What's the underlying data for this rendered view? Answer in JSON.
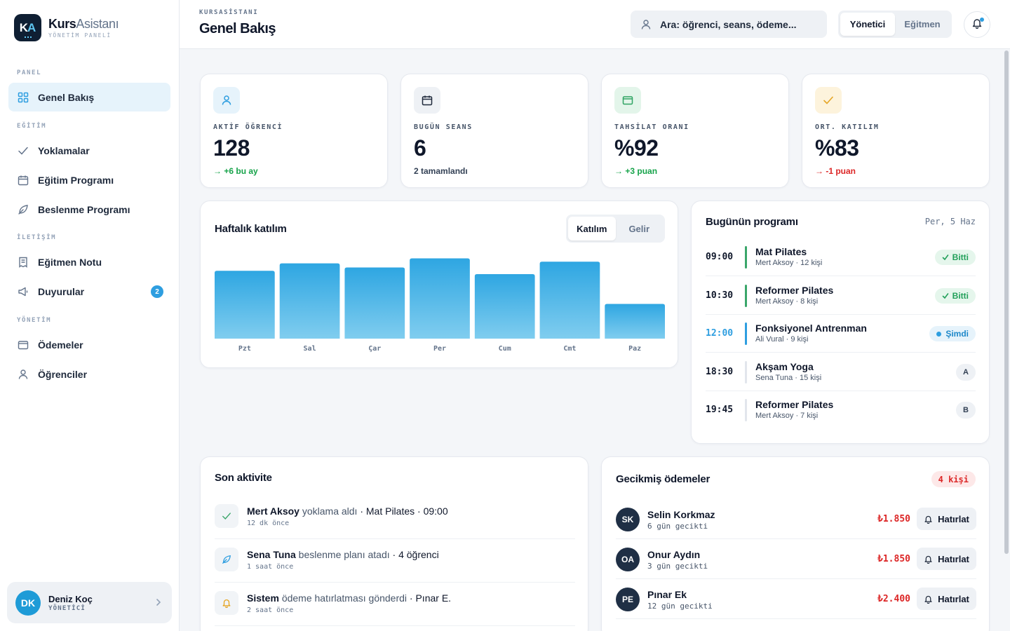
{
  "brand": {
    "name_bold": "Kurs",
    "name_light": "Asistanı",
    "subtitle": "YÖNETİM PANELİ",
    "logo_k": "K",
    "logo_a": "A"
  },
  "sidebar": {
    "sections": [
      {
        "label": "PANEL"
      },
      {
        "label": "EĞİTİM"
      },
      {
        "label": "İLETİŞİM"
      },
      {
        "label": "YÖNETİM"
      }
    ],
    "items": [
      {
        "label": "Genel Bakış",
        "icon": "grid-icon",
        "active": true
      },
      {
        "label": "Yoklamalar",
        "icon": "check-icon"
      },
      {
        "label": "Eğitim Programı",
        "icon": "calendar-icon"
      },
      {
        "label": "Beslenme Programı",
        "icon": "leaf-icon"
      },
      {
        "label": "Eğitmen Notu",
        "icon": "note-icon"
      },
      {
        "label": "Duyurular",
        "icon": "megaphone-icon",
        "badge": "2"
      },
      {
        "label": "Ödemeler",
        "icon": "wallet-icon"
      },
      {
        "label": "Öğrenciler",
        "icon": "user-icon"
      }
    ],
    "user": {
      "initials": "DK",
      "name": "Deniz Koç",
      "role": "YÖNETİCİ"
    }
  },
  "header": {
    "crumb": "KURSASİSTANI",
    "title": "Genel Bakış",
    "search_placeholder": "Ara: öğrenci, seans, ödeme...",
    "roles": [
      "Yönetici",
      "Eğitmen"
    ],
    "active_role": "Yönetici"
  },
  "stats": [
    {
      "label": "AKTİF ÖĞRENCİ",
      "value": "128",
      "delta": "+6 bu ay",
      "trend": "up",
      "icon": "user-icon",
      "icon_bg": "#e6f3fb",
      "icon_color": "#2e9ee0"
    },
    {
      "label": "BUGÜN SEANS",
      "value": "6",
      "delta": "2 tamamlandı",
      "trend": "neutral",
      "icon": "calendar-icon",
      "icon_bg": "#eef1f5",
      "icon_color": "#1e293b"
    },
    {
      "label": "TAHSİLAT ORANI",
      "value": "%92",
      "delta": "+3 puan",
      "trend": "up",
      "icon": "wallet-icon",
      "icon_bg": "#e3f5ea",
      "icon_color": "#2fa463"
    },
    {
      "label": "ORT. KATILIM",
      "value": "%83",
      "delta": "-1 puan",
      "trend": "down",
      "icon": "check-icon",
      "icon_bg": "#fdf3dc",
      "icon_color": "#e5a524"
    }
  ],
  "weekly": {
    "title": "Haftalık katılım",
    "toggle": [
      "Katılım",
      "Gelir"
    ],
    "active_toggle": "Katılım"
  },
  "chart_data": {
    "type": "bar",
    "categories": [
      "Pzt",
      "Sal",
      "Çar",
      "Per",
      "Cum",
      "Cmt",
      "Paz"
    ],
    "values": [
      82,
      91,
      86,
      97,
      78,
      93,
      42
    ],
    "ylim": [
      0,
      100
    ],
    "grid": false,
    "legend": "none"
  },
  "schedule": {
    "title": "Bugünün programı",
    "date": "Per, 5 Haz",
    "rows": [
      {
        "time": "09:00",
        "name": "Mat Pilates",
        "meta": "Mert Aksoy · 12 kişi",
        "status": "done",
        "status_label": "Bitti"
      },
      {
        "time": "10:30",
        "name": "Reformer Pilates",
        "meta": "Mert Aksoy · 8 kişi",
        "status": "done",
        "status_label": "Bitti"
      },
      {
        "time": "12:00",
        "name": "Fonksiyonel Antrenman",
        "meta": "Ali Vural · 9 kişi",
        "status": "now",
        "status_label": "Şimdi"
      },
      {
        "time": "18:30",
        "name": "Akşam Yoga",
        "meta": "Sena Tuna · 15 kişi",
        "status": "letter",
        "status_label": "A"
      },
      {
        "time": "19:45",
        "name": "Reformer Pilates",
        "meta": "Mert Aksoy · 7 kişi",
        "status": "letter",
        "status_label": "B"
      }
    ]
  },
  "activity": {
    "title": "Son aktivite",
    "rows": [
      {
        "actor": "Mert Aksoy",
        "verb": "yoklama aldı",
        "detail": "· Mat Pilates · 09:00",
        "time": "12 dk önce",
        "icon": "check-icon",
        "icon_color": "#3aa66a"
      },
      {
        "actor": "Sena Tuna",
        "verb": "beslenme planı atadı",
        "detail": "· 4 öğrenci",
        "time": "1 saat önce",
        "icon": "leaf-icon",
        "icon_color": "#2e9ee0"
      },
      {
        "actor": "Sistem",
        "verb": "ödeme hatırlatması gönderdi",
        "detail": "· Pınar E.",
        "time": "2 saat önce",
        "icon": "bell-icon",
        "icon_color": "#e5a524"
      }
    ]
  },
  "payments": {
    "title": "Gecikmiş ödemeler",
    "badge": "4 kişi",
    "remind_label": "Hatırlat",
    "rows": [
      {
        "initials": "SK",
        "name": "Selin Korkmaz",
        "late": "6 gün gecikti",
        "amount": "₺1.850"
      },
      {
        "initials": "OA",
        "name": "Onur Aydın",
        "late": "3 gün gecikti",
        "amount": "₺1.850"
      },
      {
        "initials": "PE",
        "name": "Pınar Ek",
        "late": "12 gün gecikti",
        "amount": "₺2.400"
      }
    ]
  },
  "colors": {
    "accent": "#2e9ee0",
    "success": "#22a05a",
    "danger": "#dc2626"
  }
}
